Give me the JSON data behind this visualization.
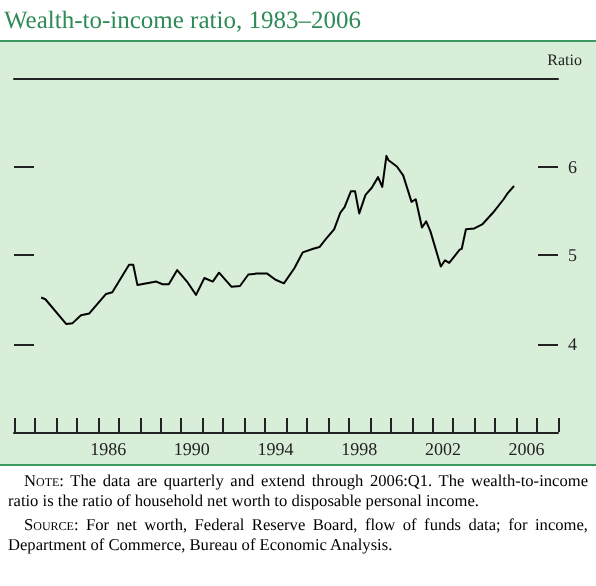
{
  "chart_data": {
    "type": "line",
    "title": "Wealth-to-income ratio, 1983–2006",
    "ylabel": "Ratio",
    "x": [
      1983.3,
      1983.5,
      1984.5,
      1984.8,
      1985.2,
      1985.6,
      1986.4,
      1986.7,
      1987.5,
      1987.7,
      1987.9,
      1988.8,
      1989.1,
      1989.4,
      1989.8,
      1990.3,
      1990.7,
      1991.1,
      1991.5,
      1991.8,
      1992.4,
      1992.8,
      1993.2,
      1993.6,
      1994.1,
      1994.5,
      1994.9,
      1995.4,
      1995.8,
      1996.3,
      1996.6,
      1996.9,
      1997.3,
      1997.6,
      1997.8,
      1998.1,
      1998.3,
      1998.5,
      1998.8,
      1999.1,
      1999.4,
      1999.6,
      1999.8,
      1999.9,
      2000.3,
      2000.6,
      2000.8,
      2001.0,
      2001.2,
      2001.5,
      2001.7,
      2001.9,
      2002.4,
      2002.6,
      2002.8,
      2003.3,
      2003.4,
      2003.6,
      2004.0,
      2004.4,
      2004.9,
      2005.4,
      2005.6,
      2005.9
    ],
    "values": [
      4.52,
      4.5,
      4.22,
      4.23,
      4.32,
      4.34,
      4.56,
      4.58,
      4.89,
      4.89,
      4.66,
      4.7,
      4.67,
      4.67,
      4.83,
      4.69,
      4.55,
      4.74,
      4.7,
      4.8,
      4.64,
      4.65,
      4.78,
      4.79,
      4.79,
      4.72,
      4.68,
      4.85,
      5.03,
      5.07,
      5.09,
      5.18,
      5.29,
      5.48,
      5.54,
      5.72,
      5.72,
      5.47,
      5.68,
      5.76,
      5.88,
      5.77,
      6.12,
      6.07,
      6.0,
      5.9,
      5.75,
      5.6,
      5.63,
      5.31,
      5.38,
      5.27,
      4.87,
      4.94,
      4.91,
      5.06,
      5.07,
      5.29,
      5.3,
      5.35,
      5.48,
      5.63,
      5.7,
      5.78
    ],
    "color": "#000000",
    "xlim": [
      1982,
      2008
    ],
    "xticks": [
      {
        "value": 1982,
        "label": null
      },
      {
        "value": 1983,
        "label": null
      },
      {
        "value": 1984,
        "label": null
      },
      {
        "value": 1985,
        "label": null
      },
      {
        "value": 1986,
        "label": null
      },
      {
        "value": 1986.5,
        "label": "1986"
      },
      {
        "value": 1987,
        "label": null
      },
      {
        "value": 1988,
        "label": null
      },
      {
        "value": 1989,
        "label": null
      },
      {
        "value": 1990,
        "label": null
      },
      {
        "value": 1990.5,
        "label": "1990"
      },
      {
        "value": 1991,
        "label": null
      },
      {
        "value": 1992,
        "label": null
      },
      {
        "value": 1993,
        "label": null
      },
      {
        "value": 1994,
        "label": null
      },
      {
        "value": 1994.5,
        "label": "1994"
      },
      {
        "value": 1995,
        "label": null
      },
      {
        "value": 1996,
        "label": null
      },
      {
        "value": 1997,
        "label": null
      },
      {
        "value": 1998,
        "label": null
      },
      {
        "value": 1998.5,
        "label": "1998"
      },
      {
        "value": 1999,
        "label": null
      },
      {
        "value": 2000,
        "label": null
      },
      {
        "value": 2001,
        "label": null
      },
      {
        "value": 2002,
        "label": null
      },
      {
        "value": 2002.5,
        "label": "2002"
      },
      {
        "value": 2003,
        "label": null
      },
      {
        "value": 2004,
        "label": null
      },
      {
        "value": 2005,
        "label": null
      },
      {
        "value": 2006,
        "label": null
      },
      {
        "value": 2006.5,
        "label": "2006"
      },
      {
        "value": 2007,
        "label": null
      },
      {
        "value": 2008,
        "label": null
      }
    ],
    "ylim": [
      3,
      7
    ],
    "yticks": [
      4,
      5,
      6
    ],
    "grid": false,
    "marker": "none",
    "line_style": "solid",
    "annotations": [
      "Note: The data are quarterly and extend through 2006:Q1. The wealth-to-income ratio is the ratio of household net worth to disposable personal income.",
      "Source: For net worth, Federal Reserve Board, flow of funds data; for income, Department of Commerce, Bureau of Economic Analysis."
    ]
  }
}
